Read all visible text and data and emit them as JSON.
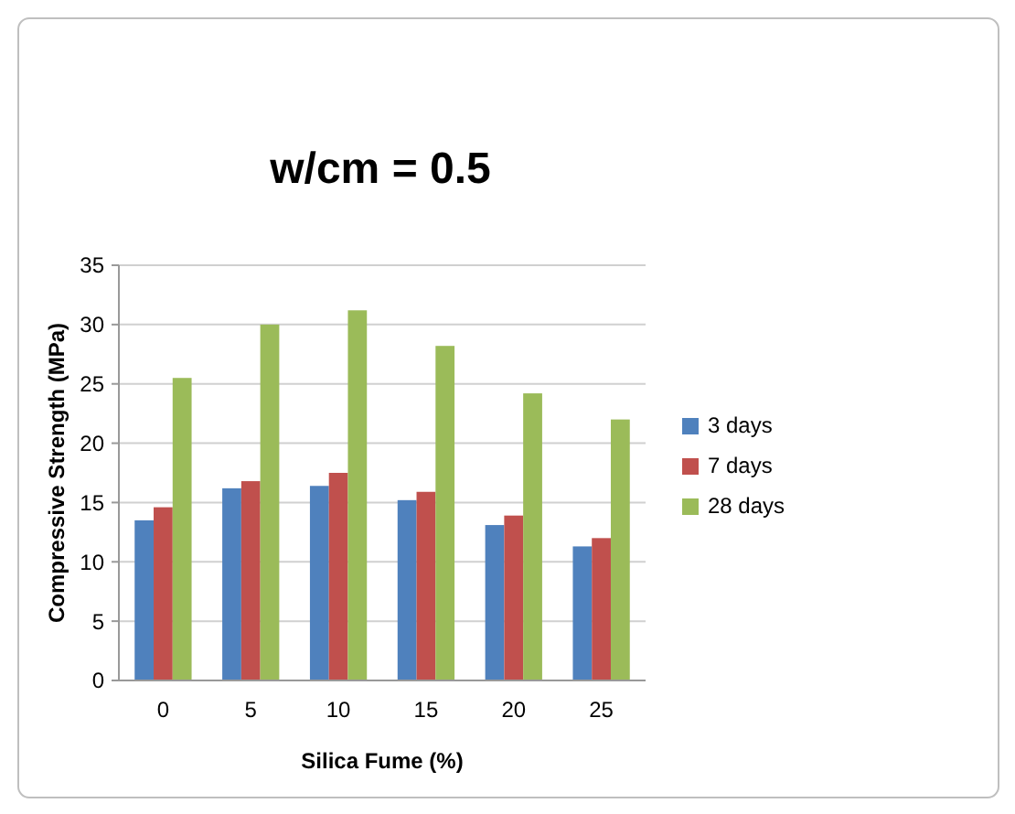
{
  "chart_data": {
    "type": "bar",
    "title": "w/cm = 0.5",
    "xlabel": "Silica Fume (%)",
    "ylabel": "Compressive Strength (MPa)",
    "categories": [
      "0",
      "5",
      "10",
      "15",
      "20",
      "25"
    ],
    "series": [
      {
        "name": "3 days",
        "color": "#4f81bd",
        "values": [
          13.5,
          16.2,
          16.4,
          15.2,
          13.1,
          11.3
        ]
      },
      {
        "name": "7 days",
        "color": "#c0504d",
        "values": [
          14.6,
          16.8,
          17.5,
          15.9,
          13.9,
          12.0
        ]
      },
      {
        "name": "28 days",
        "color": "#9bbb59",
        "values": [
          25.5,
          30.0,
          31.2,
          28.2,
          24.2,
          22.0
        ]
      }
    ],
    "ylim": [
      0,
      35
    ],
    "yticks": [
      0,
      5,
      10,
      15,
      20,
      25,
      30,
      35
    ],
    "grid": "y",
    "legend": "right"
  }
}
